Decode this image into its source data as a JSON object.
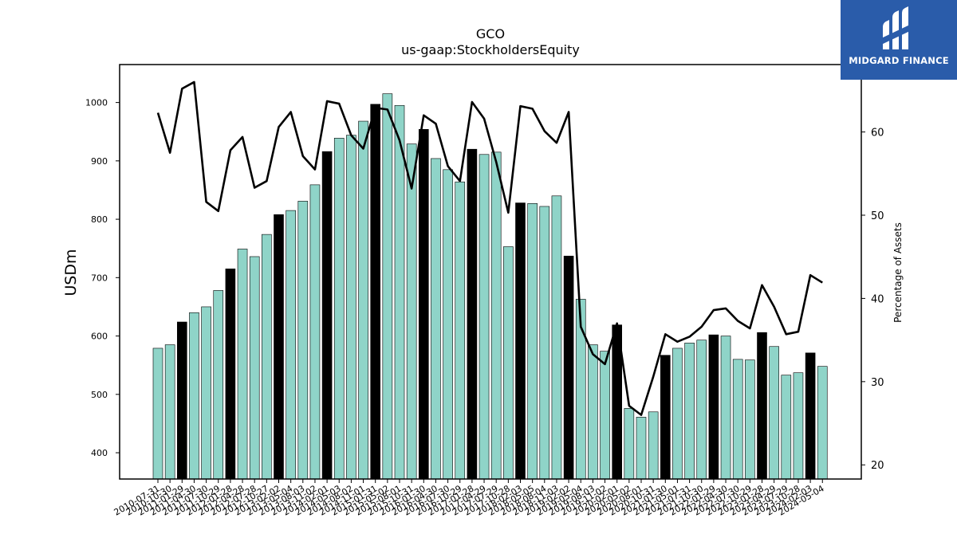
{
  "logo": {
    "text": "MIDGARD FINANCE"
  },
  "chart_data": {
    "type": "bar",
    "title": "GCO",
    "subtitle": "us-gaap:StockholdersEquity",
    "ylabel": "USDm",
    "y2label": "Percentage of Assets",
    "ylim": [
      355,
      1065
    ],
    "y2lim": [
      18.3,
      68.1
    ],
    "yticks": [
      400,
      500,
      600,
      700,
      800,
      900,
      1000
    ],
    "y2ticks": [
      20,
      30,
      40,
      50,
      60
    ],
    "colors": {
      "bar": "#8fd4c8",
      "bar_highlight": "#000000",
      "line": "#000000"
    },
    "categories": [
      "2010-07-31",
      "2010-10-30",
      "2011-01-29",
      "2011-04-30",
      "2011-07-30",
      "2011-10-29",
      "2012-01-28",
      "2012-04-28",
      "2012-07-28",
      "2012-10-27",
      "2013-02-02",
      "2013-05-04",
      "2013-08-03",
      "2013-11-02",
      "2014-02-01",
      "2014-05-03",
      "2014-08-02",
      "2014-11-01",
      "2015-01-31",
      "2015-05-02",
      "2015-08-01",
      "2015-10-31",
      "2016-01-30",
      "2016-04-30",
      "2016-07-30",
      "2016-10-29",
      "2017-01-28",
      "2017-04-29",
      "2017-07-29",
      "2017-10-28",
      "2018-02-03",
      "2018-05-05",
      "2018-08-04",
      "2018-11-03",
      "2019-02-02",
      "2019-05-04",
      "2019-08-03",
      "2019-11-02",
      "2020-02-01",
      "2020-05-02",
      "2020-08-01",
      "2020-10-31",
      "2021-01-30",
      "2021-05-01",
      "2021-07-31",
      "2021-10-30",
      "2022-01-29",
      "2022-04-30",
      "2022-07-30",
      "2022-10-29",
      "2023-01-28",
      "2023-04-29",
      "2023-07-29",
      "2023-10-28",
      "2024-02-03",
      "2024-05-04"
    ],
    "series": [
      {
        "values": [
          579,
          585,
          624,
          640,
          650,
          678,
          715,
          749,
          736,
          774,
          808,
          815,
          831,
          859,
          916,
          939,
          944,
          968,
          997,
          1015,
          995,
          929,
          954,
          904,
          885,
          864,
          920,
          911,
          915,
          753,
          828,
          827,
          822,
          840,
          737,
          663,
          585,
          574,
          619,
          476,
          461,
          470,
          567,
          579,
          588,
          593,
          602,
          600,
          560,
          559,
          606,
          582,
          533,
          537,
          571,
          548
        ],
        "highlight": [
          false,
          false,
          true,
          false,
          false,
          false,
          true,
          false,
          false,
          false,
          true,
          false,
          false,
          false,
          true,
          false,
          false,
          false,
          true,
          false,
          false,
          false,
          true,
          false,
          false,
          false,
          true,
          false,
          false,
          false,
          true,
          false,
          false,
          false,
          true,
          false,
          false,
          false,
          true,
          false,
          false,
          false,
          true,
          false,
          false,
          false,
          true,
          false,
          false,
          false,
          true,
          false,
          false,
          false,
          true,
          false
        ]
      },
      {
        "axis": "right",
        "type": "line",
        "values": [
          62.3,
          57.5,
          65.2,
          66.0,
          51.6,
          50.5,
          57.8,
          59.4,
          53.3,
          54.1,
          60.6,
          62.4,
          57.1,
          55.5,
          63.7,
          63.4,
          59.6,
          58.0,
          62.9,
          62.7,
          59.0,
          53.2,
          62.0,
          61.0,
          55.9,
          54.1,
          63.6,
          61.6,
          56.4,
          50.3,
          63.1,
          62.8,
          60.1,
          58.7,
          62.4,
          36.6,
          33.3,
          32.1,
          37.0,
          27.1,
          26.0,
          30.6,
          35.7,
          34.8,
          35.4,
          36.6,
          38.6,
          38.8,
          37.3,
          36.4,
          41.6,
          39.0,
          35.7,
          36.0,
          42.8,
          41.9
        ]
      }
    ]
  }
}
